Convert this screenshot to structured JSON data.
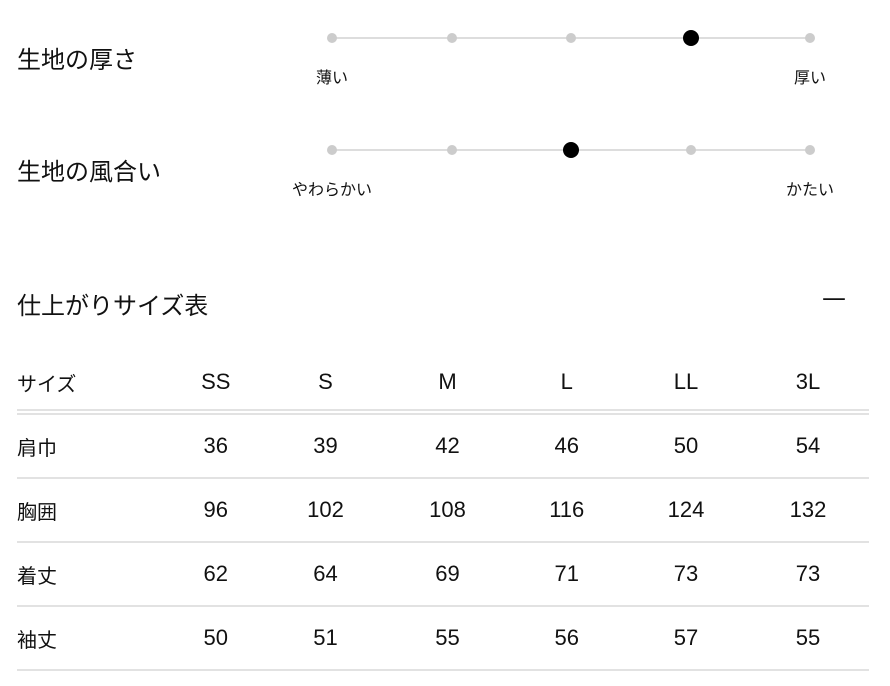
{
  "attributes": [
    {
      "title": "生地の厚さ",
      "min_label": "薄い",
      "max_label": "厚い",
      "steps": 5,
      "selected": 4
    },
    {
      "title": "生地の風合い",
      "min_label": "やわらかい",
      "max_label": "かたい",
      "steps": 5,
      "selected": 3
    }
  ],
  "size_table": {
    "title": "仕上がりサイズ表",
    "toggle": "—",
    "headers": [
      "サイズ",
      "SS",
      "S",
      "M",
      "L",
      "LL",
      "3L"
    ],
    "rows": [
      [
        "肩巾",
        "36",
        "39",
        "42",
        "46",
        "50",
        "54"
      ],
      [
        "胸囲",
        "96",
        "102",
        "108",
        "116",
        "124",
        "132"
      ],
      [
        "着丈",
        "62",
        "64",
        "69",
        "71",
        "73",
        "73"
      ],
      [
        "袖丈",
        "50",
        "51",
        "55",
        "56",
        "57",
        "55"
      ]
    ]
  }
}
